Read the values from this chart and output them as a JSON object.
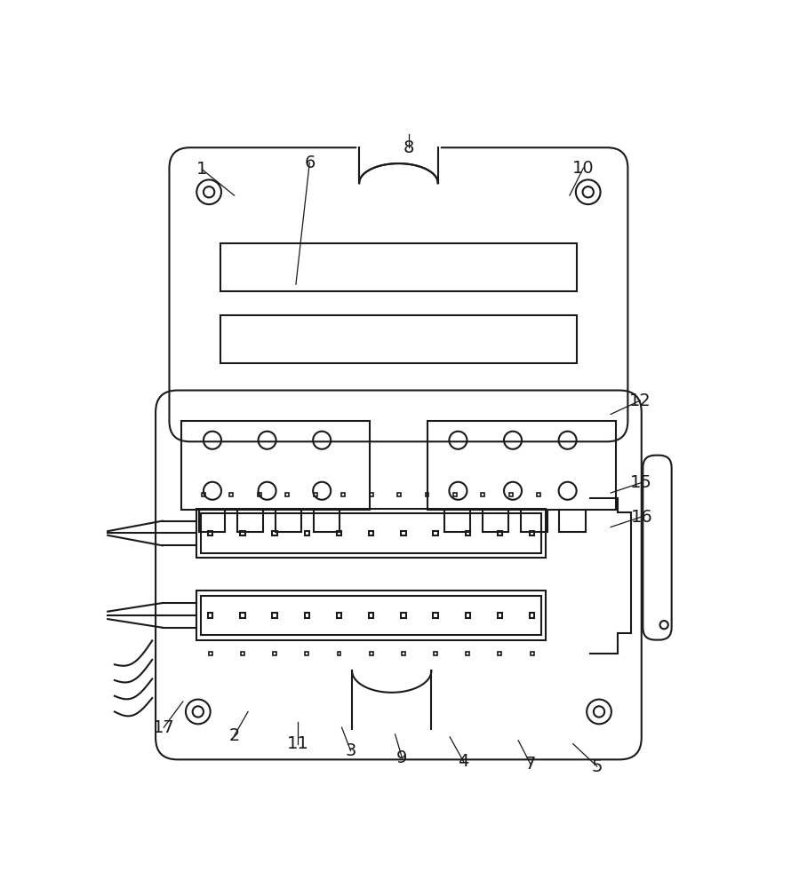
{
  "bg_color": "#ffffff",
  "line_color": "#1a1a1a",
  "lw": 1.5,
  "fig_w": 8.9,
  "fig_h": 10.0
}
